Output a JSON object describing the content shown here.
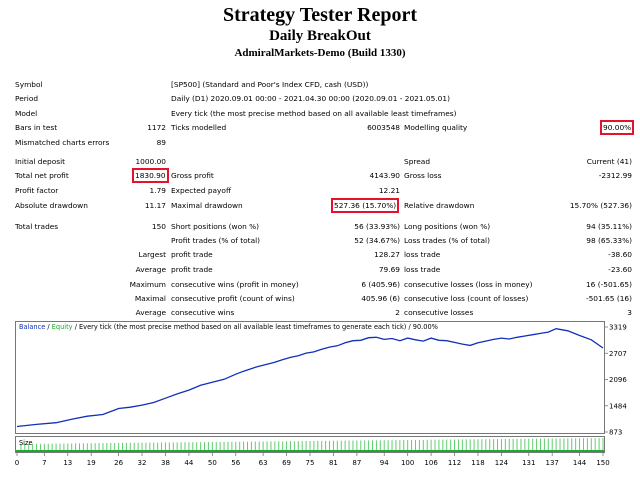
{
  "header": {
    "title": "Strategy Tester Report",
    "expert": "Daily BreakOut",
    "server": "AdmiralMarkets-Demo (Build 1330)"
  },
  "settings": {
    "symbol_label": "Symbol",
    "symbol_value": "[SP500] (Standard and Poor's Index CFD, cash (USD))",
    "period_label": "Period",
    "period_value": "Daily (D1) 2020.09.01 00:00 - 2021.04.30 00:00 (2020.09.01 - 2021.05.01)",
    "model_label": "Model",
    "model_value": "Every tick (the most precise method based on all available least timeframes)",
    "bars_label": "Bars in test",
    "bars_value": "1172",
    "ticks_label": "Ticks modelled",
    "ticks_value": "6003548",
    "quality_label": "Modelling quality",
    "quality_value": "90.00%",
    "mismatch_label": "Mismatched charts errors",
    "mismatch_value": "89"
  },
  "results": {
    "initial_deposit_label": "Initial deposit",
    "initial_deposit": "1000.00",
    "spread_label": "Spread",
    "spread_value": "Current (41)",
    "net_profit_label": "Total net profit",
    "net_profit": "1830.90",
    "gross_profit_label": "Gross profit",
    "gross_profit": "4143.90",
    "gross_loss_label": "Gross loss",
    "gross_loss": "-2312.99",
    "profit_factor_label": "Profit factor",
    "profit_factor": "1.79",
    "expected_payoff_label": "Expected payoff",
    "expected_payoff": "12.21",
    "abs_dd_label": "Absolute drawdown",
    "abs_dd": "11.17",
    "max_dd_label": "Maximal drawdown",
    "max_dd": "527.36 (15.70%)",
    "rel_dd_label": "Relative drawdown",
    "rel_dd": "15.70% (527.36)"
  },
  "trades": {
    "total_label": "Total trades",
    "total": "150",
    "short_label": "Short positions (won %)",
    "short": "56 (33.93%)",
    "long_label": "Long positions (won %)",
    "long": "94 (35.11%)",
    "profit_trades_label": "Profit trades (% of total)",
    "profit_trades": "52 (34.67%)",
    "loss_trades_label": "Loss trades (% of total)",
    "loss_trades": "98 (65.33%)",
    "largest_label": "Largest",
    "average_label": "Average",
    "maximum_label": "Maximum",
    "maximal_label": "Maximal",
    "profit_trade_label": "profit trade",
    "loss_trade_label": "loss trade",
    "largest_profit": "128.27",
    "largest_loss": "-38.60",
    "average_profit": "79.69",
    "average_loss": "-23.60",
    "cons_wins_money_label": "consecutive wins (profit in money)",
    "cons_wins_money": "6 (405.96)",
    "cons_losses_money_label": "consecutive losses (loss in money)",
    "cons_losses_money": "16 (-501.65)",
    "cons_profit_count_label": "consecutive profit (count of wins)",
    "cons_profit_count": "405.96 (6)",
    "cons_loss_count_label": "consecutive loss (count of losses)",
    "cons_loss_count": "-501.65 (16)",
    "avg_cons_wins_label": "consecutive wins",
    "avg_cons_wins": "2",
    "avg_cons_losses_label": "consecutive losses",
    "avg_cons_losses": "3"
  },
  "colors": {
    "highlight": "#e8112d",
    "balance": "#1230b8",
    "equity": "#1fa832",
    "size_bars": "#5fcf6d",
    "size_base": "#1fa832"
  },
  "chart_data": {
    "type": "line",
    "legend_balance": "Balance",
    "legend_sep": " / ",
    "legend_equity": "Equity",
    "legend_rest": " / Every tick (the most precise method based on all available least timeframes to generate each tick) / 90.00%",
    "size_label": "Size",
    "y_ticks": [
      3319,
      2707,
      2096,
      1484,
      873
    ],
    "x_ticks": [
      0,
      7,
      13,
      19,
      26,
      32,
      38,
      44,
      50,
      56,
      63,
      69,
      75,
      81,
      87,
      94,
      100,
      106,
      112,
      118,
      124,
      131,
      137,
      144,
      150
    ],
    "ylim": [
      873,
      3319
    ],
    "xlim": [
      0,
      150
    ],
    "series": [
      {
        "name": "Balance",
        "x": [
          0,
          5,
          10,
          14,
          18,
          22,
          26,
          29,
          32,
          35,
          38,
          41,
          44,
          47,
          50,
          53,
          56,
          58,
          61,
          64,
          66,
          68,
          70,
          72,
          74,
          76,
          78,
          80,
          82,
          84,
          86,
          88,
          90,
          92,
          94,
          96,
          98,
          100,
          102,
          104,
          106,
          108,
          110,
          112,
          114,
          116,
          118,
          120,
          122,
          124,
          126,
          128,
          130,
          132,
          134,
          136,
          138,
          141,
          144,
          147,
          150
        ],
        "values": [
          1000,
          1050,
          1090,
          1170,
          1240,
          1280,
          1420,
          1450,
          1500,
          1560,
          1660,
          1760,
          1850,
          1960,
          2030,
          2100,
          2220,
          2290,
          2380,
          2450,
          2500,
          2560,
          2610,
          2650,
          2710,
          2740,
          2800,
          2850,
          2880,
          2950,
          3000,
          3010,
          3070,
          3080,
          3030,
          3050,
          3000,
          3060,
          3020,
          2990,
          3060,
          3010,
          3000,
          2960,
          2920,
          2890,
          2950,
          2990,
          3030,
          3060,
          3040,
          3080,
          3110,
          3140,
          3170,
          3200,
          3280,
          3230,
          3120,
          3020,
          2830
        ]
      }
    ]
  }
}
